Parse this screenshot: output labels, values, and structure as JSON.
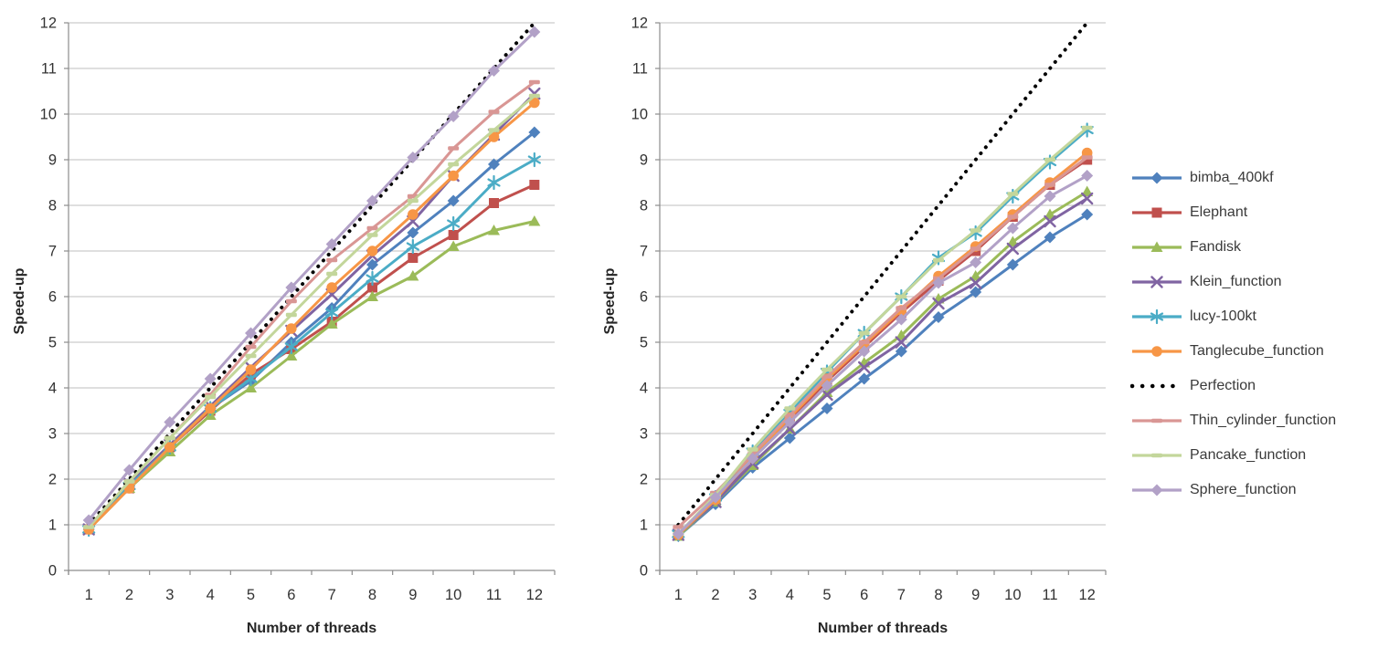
{
  "figure": {
    "background": "#FFFFFF",
    "grid_color": "#BFBFBF",
    "axis_color": "#8C8C8C",
    "tick_text_color": "#333333",
    "axis_title_color": "#262626"
  },
  "legend": {
    "position": "right-middle"
  },
  "chart_data": [
    {
      "type": "line",
      "title": "",
      "xlabel": "Number of threads",
      "ylabel": "Speed-up",
      "x": [
        1,
        2,
        3,
        4,
        5,
        6,
        7,
        8,
        9,
        10,
        11,
        12
      ],
      "ylim": [
        0,
        12
      ],
      "ytick_step": 1,
      "grid": true,
      "series": [
        {
          "name": "bimba_400kf",
          "color": "#4F81BD",
          "marker": "diamond",
          "line": "solid",
          "values": [
            0.9,
            1.85,
            2.7,
            3.55,
            4.15,
            5.0,
            5.75,
            6.7,
            7.4,
            8.1,
            8.9,
            9.6
          ]
        },
        {
          "name": "Elephant",
          "color": "#C0504D",
          "marker": "square",
          "line": "solid",
          "values": [
            0.9,
            1.8,
            2.7,
            3.5,
            4.3,
            4.85,
            5.45,
            6.2,
            6.85,
            7.35,
            8.05,
            8.45
          ]
        },
        {
          "name": "Fandisk",
          "color": "#9BBB59",
          "marker": "triangle",
          "line": "solid",
          "values": [
            0.9,
            1.8,
            2.6,
            3.4,
            4.0,
            4.7,
            5.4,
            6.0,
            6.45,
            7.1,
            7.45,
            7.65
          ]
        },
        {
          "name": "Klein_function",
          "color": "#8064A2",
          "marker": "x",
          "line": "solid",
          "values": [
            0.9,
            1.9,
            2.75,
            3.6,
            4.45,
            5.25,
            6.05,
            6.9,
            7.65,
            8.65,
            9.55,
            10.45
          ]
        },
        {
          "name": "lucy-100kt",
          "color": "#4BACC6",
          "marker": "asterisk",
          "line": "solid",
          "values": [
            0.9,
            1.85,
            2.7,
            3.55,
            4.2,
            4.9,
            5.65,
            6.4,
            7.1,
            7.6,
            8.5,
            9.0
          ]
        },
        {
          "name": "Tanglecube_function",
          "color": "#F79646",
          "marker": "circle",
          "line": "solid",
          "values": [
            0.9,
            1.8,
            2.7,
            3.55,
            4.4,
            5.3,
            6.2,
            7.0,
            7.8,
            8.65,
            9.5,
            10.25
          ]
        },
        {
          "name": "Perfection",
          "color": "#000000",
          "marker": "none",
          "line": "dotted",
          "values": [
            1,
            2,
            3,
            4,
            5,
            6,
            7,
            8,
            9,
            10,
            11,
            12
          ]
        },
        {
          "name": "Thin_cylinder_function",
          "color": "#D99694",
          "marker": "dash",
          "line": "solid",
          "values": [
            0.95,
            1.95,
            2.9,
            3.85,
            4.9,
            5.9,
            6.8,
            7.5,
            8.2,
            9.25,
            10.05,
            10.7
          ]
        },
        {
          "name": "Pancake_function",
          "color": "#C3D69B",
          "marker": "dash",
          "line": "solid",
          "values": [
            0.95,
            1.95,
            2.9,
            3.8,
            4.7,
            5.6,
            6.5,
            7.35,
            8.1,
            8.9,
            9.65,
            10.4
          ]
        },
        {
          "name": "Sphere_function",
          "color": "#B2A1C7",
          "marker": "diamond",
          "line": "solid",
          "values": [
            1.1,
            2.2,
            3.25,
            4.2,
            5.2,
            6.2,
            7.15,
            8.1,
            9.05,
            9.95,
            10.95,
            11.8
          ]
        }
      ]
    },
    {
      "type": "line",
      "title": "",
      "xlabel": "Number of threads",
      "ylabel": "Speed-up",
      "x": [
        1,
        2,
        3,
        4,
        5,
        6,
        7,
        8,
        9,
        10,
        11,
        12
      ],
      "ylim": [
        0,
        12
      ],
      "ytick_step": 1,
      "grid": true,
      "series": [
        {
          "name": "bimba_400kf",
          "color": "#4F81BD",
          "marker": "diamond",
          "line": "solid",
          "values": [
            0.75,
            1.45,
            2.25,
            2.9,
            3.55,
            4.2,
            4.8,
            5.55,
            6.1,
            6.7,
            7.3,
            7.8
          ]
        },
        {
          "name": "Elephant",
          "color": "#C0504D",
          "marker": "square",
          "line": "solid",
          "values": [
            0.78,
            1.55,
            2.45,
            3.3,
            4.15,
            4.9,
            5.65,
            6.35,
            7.0,
            7.75,
            8.45,
            9.0
          ]
        },
        {
          "name": "Fandisk",
          "color": "#9BBB59",
          "marker": "triangle",
          "line": "solid",
          "values": [
            0.75,
            1.5,
            2.3,
            3.1,
            3.9,
            4.55,
            5.15,
            5.95,
            6.45,
            7.2,
            7.8,
            8.3
          ]
        },
        {
          "name": "Klein_function",
          "color": "#8064A2",
          "marker": "x",
          "line": "solid",
          "values": [
            0.78,
            1.5,
            2.35,
            3.1,
            3.85,
            4.45,
            5.0,
            5.85,
            6.3,
            7.05,
            7.65,
            8.15
          ]
        },
        {
          "name": "lucy-100kt",
          "color": "#4BACC6",
          "marker": "asterisk",
          "line": "solid",
          "values": [
            0.8,
            1.6,
            2.6,
            3.45,
            4.35,
            5.2,
            6.0,
            6.85,
            7.4,
            8.2,
            8.95,
            9.65
          ]
        },
        {
          "name": "Tanglecube_function",
          "color": "#F79646",
          "marker": "circle",
          "line": "solid",
          "values": [
            0.78,
            1.55,
            2.5,
            3.35,
            4.2,
            4.95,
            5.7,
            6.45,
            7.1,
            7.8,
            8.5,
            9.15
          ]
        },
        {
          "name": "Perfection",
          "color": "#000000",
          "marker": "none",
          "line": "dotted",
          "values": [
            1,
            2,
            3,
            4,
            5,
            6,
            7,
            8,
            9,
            10,
            11,
            12
          ]
        },
        {
          "name": "Thin_cylinder_function",
          "color": "#D99694",
          "marker": "dash",
          "line": "solid",
          "values": [
            0.95,
            1.7,
            2.55,
            3.4,
            4.25,
            5.0,
            5.75,
            6.4,
            7.05,
            7.75,
            8.45,
            9.05
          ]
        },
        {
          "name": "Pancake_function",
          "color": "#C3D69B",
          "marker": "dash",
          "line": "solid",
          "values": [
            0.8,
            1.65,
            2.65,
            3.55,
            4.4,
            5.2,
            6.0,
            6.8,
            7.45,
            8.25,
            9.0,
            9.7
          ]
        },
        {
          "name": "Sphere_function",
          "color": "#B2A1C7",
          "marker": "diamond",
          "line": "solid",
          "values": [
            0.8,
            1.6,
            2.45,
            3.25,
            4.05,
            4.8,
            5.5,
            6.3,
            6.75,
            7.5,
            8.2,
            8.65
          ]
        }
      ]
    }
  ]
}
